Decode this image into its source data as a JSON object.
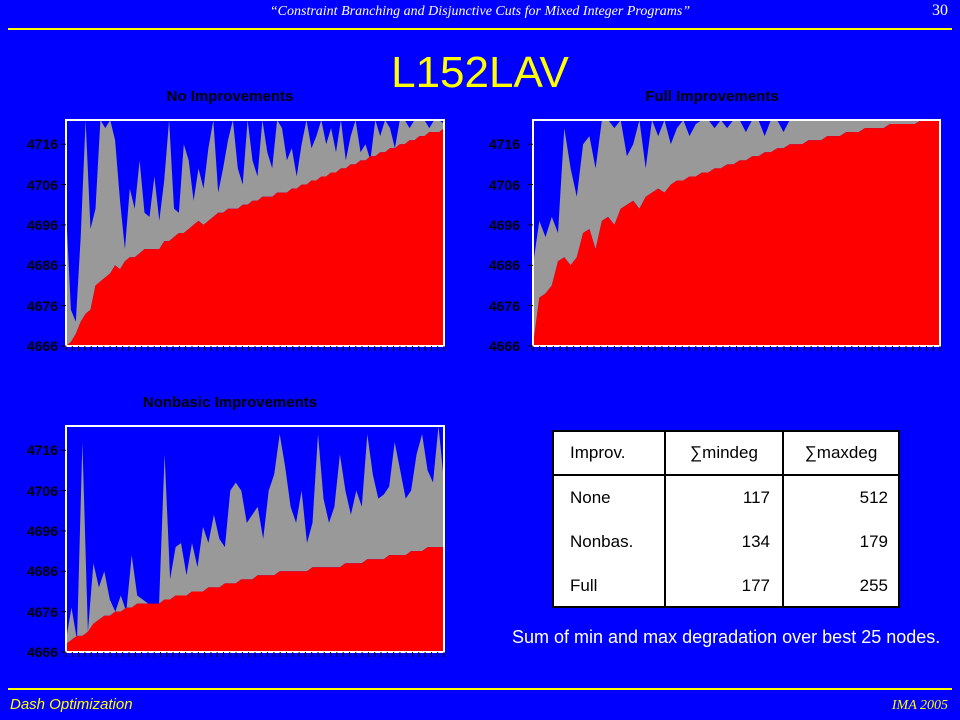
{
  "header": {
    "title": "“Constraint Branching and Disjunctive Cuts for Mixed Integer Programs”",
    "page_number": "30"
  },
  "slide_title": "L152LAV",
  "footer": {
    "left": "Dash Optimization",
    "right": "IMA 2005"
  },
  "colors": {
    "background": "#0000ff",
    "accent": "#ffff00",
    "gray": "#999999",
    "red": "#ff0000",
    "plot_bg": "#ffffff"
  },
  "chart_data": [
    {
      "id": "no",
      "type": "area",
      "title": "No Improvements",
      "y_ticks": [
        4666,
        4676,
        4686,
        4696,
        4706,
        4716
      ],
      "ylim": [
        4666,
        4722
      ],
      "grid": false,
      "series": [
        {
          "role": "min",
          "color": "#ff0000",
          "values": [
            4666,
            4667,
            4669,
            4672,
            4674,
            4675,
            4681,
            4682,
            4683,
            4684,
            4686,
            4685,
            4687,
            4688,
            4688,
            4689,
            4690,
            4690,
            4690,
            4690,
            4692,
            4692,
            4693,
            4694,
            4694,
            4695,
            4696,
            4697,
            4696,
            4697,
            4698,
            4699,
            4699,
            4700,
            4700,
            4700,
            4701,
            4701,
            4702,
            4702,
            4703,
            4703,
            4703,
            4704,
            4704,
            4704,
            4705,
            4705,
            4706,
            4706,
            4707,
            4707,
            4708,
            4708,
            4709,
            4709,
            4710,
            4710,
            4711,
            4711,
            4712,
            4712,
            4713,
            4713,
            4714,
            4714,
            4715,
            4715,
            4716,
            4716,
            4717,
            4717,
            4718,
            4718,
            4719,
            4719,
            4719,
            4720
          ]
        },
        {
          "role": "max",
          "color": "#999999",
          "values": [
            4700,
            4675,
            4672,
            4693,
            4722,
            4695,
            4700,
            4722,
            4720,
            4722,
            4717,
            4702,
            4690,
            4705,
            4700,
            4712,
            4699,
            4698,
            4708,
            4697,
            4707,
            4722,
            4700,
            4699,
            4716,
            4712,
            4702,
            4710,
            4705,
            4715,
            4722,
            4704,
            4710,
            4717,
            4722,
            4710,
            4706,
            4722,
            4712,
            4708,
            4722,
            4714,
            4710,
            4722,
            4720,
            4712,
            4715,
            4708,
            4716,
            4722,
            4715,
            4718,
            4722,
            4716,
            4720,
            4714,
            4722,
            4712,
            4718,
            4722,
            4714,
            4716,
            4712,
            4722,
            4718,
            4722,
            4720,
            4715,
            4722,
            4722,
            4720,
            4722,
            4722,
            4722,
            4720,
            4722,
            4722,
            4721
          ]
        }
      ]
    },
    {
      "id": "full",
      "type": "area",
      "title": "Full Improvements",
      "y_ticks": [
        4666,
        4676,
        4686,
        4696,
        4706,
        4716
      ],
      "ylim": [
        4666,
        4722
      ],
      "grid": false,
      "series": [
        {
          "role": "min",
          "color": "#ff0000",
          "values": [
            4666,
            4678,
            4679,
            4681,
            4687,
            4688,
            4686,
            4688,
            4694,
            4695,
            4690,
            4697,
            4698,
            4696,
            4700,
            4701,
            4702,
            4700,
            4703,
            4704,
            4705,
            4704,
            4706,
            4707,
            4707,
            4708,
            4708,
            4709,
            4709,
            4710,
            4710,
            4711,
            4711,
            4712,
            4712,
            4713,
            4713,
            4714,
            4714,
            4715,
            4715,
            4716,
            4716,
            4716,
            4717,
            4717,
            4717,
            4718,
            4718,
            4718,
            4719,
            4719,
            4719,
            4720,
            4720,
            4720,
            4720,
            4721,
            4721,
            4721,
            4721,
            4721,
            4722,
            4722,
            4722,
            4722
          ]
        },
        {
          "role": "max",
          "color": "#999999",
          "values": [
            4686,
            4697,
            4693,
            4698,
            4694,
            4720,
            4710,
            4703,
            4716,
            4718,
            4710,
            4722,
            4722,
            4720,
            4722,
            4713,
            4716,
            4722,
            4710,
            4722,
            4718,
            4722,
            4716,
            4720,
            4722,
            4718,
            4721,
            4722,
            4722,
            4720,
            4722,
            4720,
            4722,
            4722,
            4719,
            4722,
            4722,
            4718,
            4722,
            4722,
            4719,
            4722,
            4722,
            4722,
            4722,
            4722,
            4722,
            4722,
            4722,
            4722,
            4722,
            4722,
            4722,
            4722,
            4722,
            4722,
            4722,
            4722,
            4722,
            4722,
            4722,
            4722,
            4722,
            4722,
            4722,
            4722
          ]
        }
      ]
    },
    {
      "id": "nonbasic",
      "type": "area",
      "title": "Nonbasic Improvements",
      "y_ticks": [
        4666,
        4676,
        4686,
        4696,
        4706,
        4716
      ],
      "ylim": [
        4666,
        4722
      ],
      "grid": false,
      "series": [
        {
          "role": "min",
          "color": "#ff0000",
          "values": [
            4668,
            4669,
            4670,
            4670,
            4671,
            4673,
            4674,
            4675,
            4675,
            4676,
            4676,
            4677,
            4677,
            4678,
            4678,
            4678,
            4678,
            4678,
            4679,
            4679,
            4680,
            4680,
            4680,
            4681,
            4681,
            4681,
            4682,
            4682,
            4682,
            4683,
            4683,
            4683,
            4684,
            4684,
            4684,
            4685,
            4685,
            4685,
            4685,
            4686,
            4686,
            4686,
            4686,
            4686,
            4686,
            4687,
            4687,
            4687,
            4687,
            4687,
            4687,
            4688,
            4688,
            4688,
            4688,
            4689,
            4689,
            4689,
            4689,
            4690,
            4690,
            4690,
            4690,
            4691,
            4691,
            4691,
            4692,
            4692,
            4692,
            4692
          ]
        },
        {
          "role": "max",
          "color": "#999999",
          "values": [
            4669,
            4677,
            4669,
            4718,
            4671,
            4688,
            4682,
            4686,
            4679,
            4676,
            4680,
            4676,
            4690,
            4680,
            4679,
            4678,
            4678,
            4678,
            4715,
            4684,
            4692,
            4693,
            4685,
            4693,
            4687,
            4697,
            4693,
            4700,
            4694,
            4692,
            4706,
            4708,
            4706,
            4698,
            4700,
            4702,
            4694,
            4706,
            4710,
            4720,
            4712,
            4702,
            4698,
            4706,
            4693,
            4698,
            4720,
            4704,
            4698,
            4702,
            4715,
            4706,
            4700,
            4706,
            4702,
            4720,
            4710,
            4704,
            4705,
            4707,
            4718,
            4711,
            4704,
            4706,
            4715,
            4720,
            4711,
            4708,
            4722,
            4708
          ]
        }
      ]
    }
  ],
  "table": {
    "headers": [
      "Improv.",
      "∑mindeg",
      "∑maxdeg"
    ],
    "rows": [
      [
        "None",
        "117",
        "512"
      ],
      [
        "Nonbas.",
        "134",
        "179"
      ],
      [
        "Full",
        "177",
        "255"
      ]
    ]
  },
  "caption": "Sum of min and max degradation over best 25 nodes."
}
